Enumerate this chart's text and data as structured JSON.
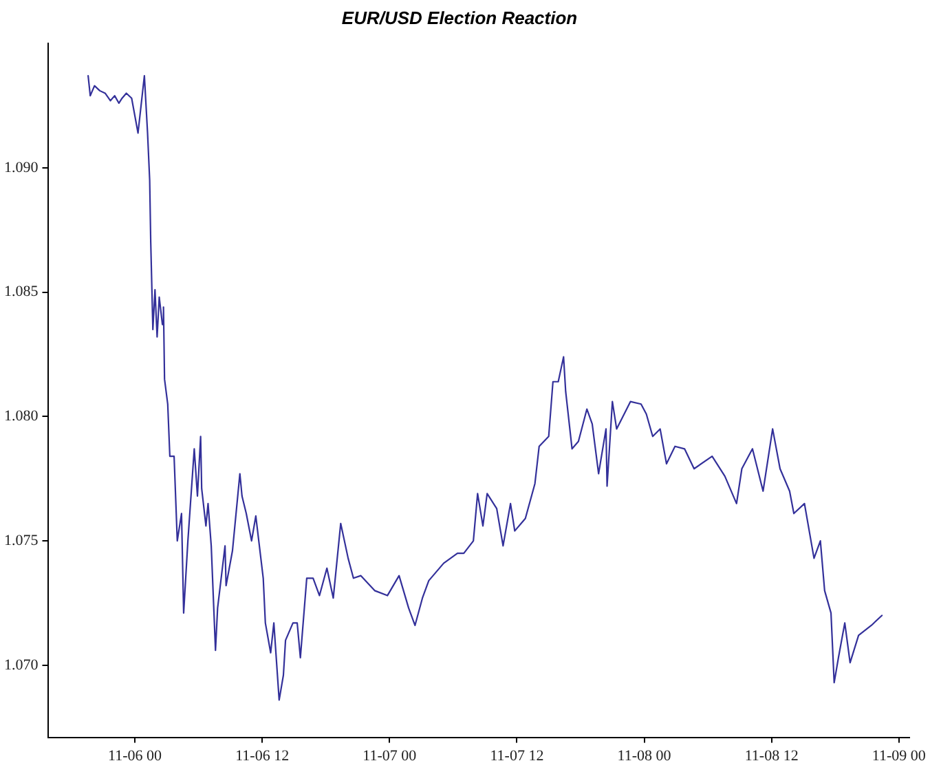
{
  "chart_data": {
    "type": "line",
    "title": "EUR/USD Election Reaction",
    "grid": false,
    "legend": false,
    "marker": "none",
    "line_style": "solid",
    "xlim": [
      "--11-05T15:48",
      "--11-09T01:00"
    ],
    "xticks": [
      {
        "value": "--11-06T00:00",
        "label": "11-06 00"
      },
      {
        "value": "--11-06T12:00",
        "label": "11-06 12"
      },
      {
        "value": "--11-07T00:00",
        "label": "11-07 00"
      },
      {
        "value": "--11-07T12:00",
        "label": "11-07 12"
      },
      {
        "value": "--11-08T00:00",
        "label": "11-08 00"
      },
      {
        "value": "--11-08T12:00",
        "label": "11-08 12"
      },
      {
        "value": "--11-09T00:00",
        "label": "11-09 00"
      }
    ],
    "ylim": [
      1.0671,
      1.095
    ],
    "yticks": [
      {
        "value": 1.07,
        "label": "1.070"
      },
      {
        "value": 1.075,
        "label": "1.075"
      },
      {
        "value": 1.08,
        "label": "1.080"
      },
      {
        "value": 1.085,
        "label": "1.085"
      },
      {
        "value": 1.09,
        "label": "1.090"
      }
    ],
    "series": [
      {
        "color": "#33309a",
        "x": [
          "--11-05T19:36",
          "--11-05T19:48",
          "--11-05T20:12",
          "--11-05T20:42",
          "--11-05T21:12",
          "--11-05T21:42",
          "--11-05T22:06",
          "--11-05T22:30",
          "--11-05T22:48",
          "--11-05T23:12",
          "--11-05T23:42",
          "--11-06T00:18",
          "--11-06T00:54",
          "--11-06T01:12",
          "--11-06T01:24",
          "--11-06T01:30",
          "--11-06T01:42",
          "--11-06T01:54",
          "--11-06T02:06",
          "--11-06T02:18",
          "--11-06T02:36",
          "--11-06T02:42",
          "--11-06T02:48",
          "--11-06T03:06",
          "--11-06T03:18",
          "--11-06T03:42",
          "--11-06T04:00",
          "--11-06T04:24",
          "--11-06T04:36",
          "--11-06T05:00",
          "--11-06T05:36",
          "--11-06T05:54",
          "--11-06T06:12",
          "--11-06T06:18",
          "--11-06T06:42",
          "--11-06T06:54",
          "--11-06T07:12",
          "--11-06T07:36",
          "--11-06T07:48",
          "--11-06T08:30",
          "--11-06T08:36",
          "--11-06T09:12",
          "--11-06T09:54",
          "--11-06T10:06",
          "--11-06T10:30",
          "--11-06T11:00",
          "--11-06T11:24",
          "--11-06T12:06",
          "--11-06T12:18",
          "--11-06T12:48",
          "--11-06T13:06",
          "--11-06T13:36",
          "--11-06T14:00",
          "--11-06T14:12",
          "--11-06T14:54",
          "--11-06T15:18",
          "--11-06T15:36",
          "--11-06T16:12",
          "--11-06T16:48",
          "--11-06T17:24",
          "--11-06T18:06",
          "--11-06T18:42",
          "--11-06T19:24",
          "--11-06T20:06",
          "--11-06T20:36",
          "--11-06T21:18",
          "--11-06T22:36",
          "--11-06T23:48",
          "--11-07T00:54",
          "--11-07T01:48",
          "--11-07T02:24",
          "--11-07T03:06",
          "--11-07T03:42",
          "--11-07T05:06",
          "--11-07T06:24",
          "--11-07T07:00",
          "--11-07T07:54",
          "--11-07T08:18",
          "--11-07T08:48",
          "--11-07T09:12",
          "--11-07T10:06",
          "--11-07T10:42",
          "--11-07T11:24",
          "--11-07T11:48",
          "--11-07T12:48",
          "--11-07T13:42",
          "--11-07T14:06",
          "--11-07T15:00",
          "--11-07T15:24",
          "--11-07T15:54",
          "--11-07T16:24",
          "--11-07T16:36",
          "--11-07T17:12",
          "--11-07T17:48",
          "--11-07T18:36",
          "--11-07T19:06",
          "--11-07T19:42",
          "--11-07T20:24",
          "--11-07T20:30",
          "--11-07T21:00",
          "--11-07T21:24",
          "--11-07T22:42",
          "--11-07T23:42",
          "--11-08T00:12",
          "--11-08T00:48",
          "--11-08T01:30",
          "--11-08T02:06",
          "--11-08T02:54",
          "--11-08T03:48",
          "--11-08T04:42",
          "--11-08T06:24",
          "--11-08T07:36",
          "--11-08T08:42",
          "--11-08T09:12",
          "--11-08T10:12",
          "--11-08T11:12",
          "--11-08T12:06",
          "--11-08T12:48",
          "--11-08T13:42",
          "--11-08T14:06",
          "--11-08T15:06",
          "--11-08T16:00",
          "--11-08T16:36",
          "--11-08T17:00",
          "--11-08T17:36",
          "--11-08T17:54",
          "--11-08T18:18",
          "--11-08T18:54",
          "--11-08T19:24",
          "--11-08T20:12",
          "--11-08T21:24",
          "--11-08T22:24"
        ],
        "values": [
          1.0937,
          1.0929,
          1.0933,
          1.0931,
          1.093,
          1.0927,
          1.0929,
          1.0926,
          1.0928,
          1.093,
          1.0928,
          1.0914,
          1.0937,
          1.0914,
          1.0895,
          1.087,
          1.0835,
          1.0851,
          1.0832,
          1.0848,
          1.0837,
          1.0844,
          1.0815,
          1.0805,
          1.0784,
          1.0784,
          1.075,
          1.0761,
          1.0721,
          1.075,
          1.0787,
          1.0768,
          1.0792,
          1.0771,
          1.0756,
          1.0765,
          1.0748,
          1.0706,
          1.0723,
          1.0748,
          1.0732,
          1.0746,
          1.0777,
          1.0768,
          1.0761,
          1.075,
          1.076,
          1.0735,
          1.0717,
          1.0705,
          1.0717,
          1.0686,
          1.0696,
          1.071,
          1.0717,
          1.0717,
          1.0703,
          1.0735,
          1.0735,
          1.0728,
          1.0739,
          1.0727,
          1.0757,
          1.0743,
          1.0735,
          1.0736,
          1.073,
          1.0728,
          1.0736,
          1.0723,
          1.0716,
          1.0727,
          1.0734,
          1.0741,
          1.0745,
          1.0745,
          1.075,
          1.0769,
          1.0756,
          1.0769,
          1.0763,
          1.0748,
          1.0765,
          1.0754,
          1.0759,
          1.0773,
          1.0788,
          1.0792,
          1.0814,
          1.0814,
          1.0824,
          1.081,
          1.0787,
          1.079,
          1.0803,
          1.0797,
          1.0777,
          1.0795,
          1.0772,
          1.0806,
          1.0795,
          1.0806,
          1.0805,
          1.0801,
          1.0792,
          1.0795,
          1.0781,
          1.0788,
          1.0787,
          1.0779,
          1.0784,
          1.0776,
          1.0765,
          1.0779,
          1.0787,
          1.077,
          1.0795,
          1.0779,
          1.077,
          1.0761,
          1.0765,
          1.0743,
          1.075,
          1.073,
          1.0721,
          1.0693,
          1.0703,
          1.0717,
          1.0701,
          1.0712,
          1.0716,
          1.072
        ]
      }
    ]
  }
}
